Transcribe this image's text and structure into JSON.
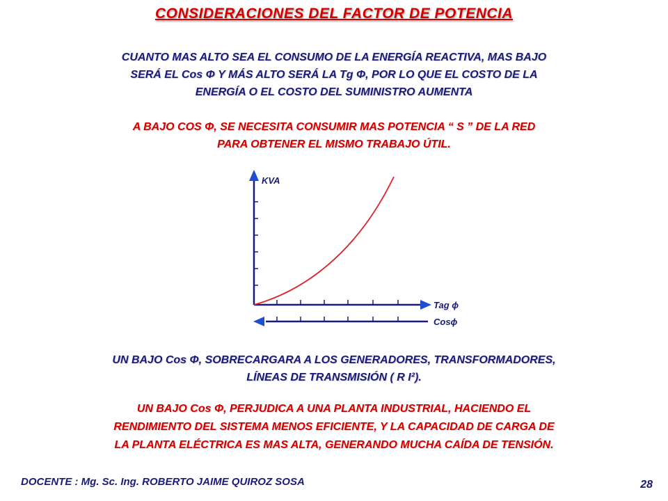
{
  "slide": {
    "title": "CONSIDERACIONES DEL FACTOR DE POTENCIA",
    "paragraph_1": [
      "CUANTO   MAS  ALTO  SEA EL CONSUMO DE LA ENERGÍA REACTIVA, MAS BAJO",
      "SERÁ EL Cos Φ  Y MÁS  ALTO  SERÁ  LA   Tg Φ,  POR LO QUE EL  COSTO  DE  LA",
      "ENERGÍA  O  EL  COSTO  DEL SUMINISTRO  AUMENTA"
    ],
    "paragraph_2": [
      "A BAJO COS Φ, SE NECESITA CONSUMIR MAS POTENCIA  “ S ”  DE LA RED",
      "PARA OBTENER EL  MISMO TRABAJO ÚTIL."
    ],
    "paragraph_3": [
      "UN  BAJO  Cos Φ,  SOBRECARGARA  A  LOS GENERADORES, TRANSFORMADORES,",
      "LÍNEAS DE     TRANSMISIÓN  ( R I²)."
    ],
    "paragraph_4": [
      "UN BAJO  Cos Φ,  PERJUDICA  A UNA PLANTA INDUSTRIAL,  HACIENDO  EL",
      "RENDIMIENTO DEL    SISTEMA  MENOS EFICIENTE,  Y LA CAPACIDAD DE  CARGA  DE",
      "LA  PLANTA  ELÉCTRICA  ES MAS   ALTA,   GENERANDO MUCHA CAÍDA DE TENSIÓN."
    ],
    "footer": "DOCENTE : Mg. Sc. Ing. ROBERTO JAIME QUIROZ SOSA",
    "page_number": "28"
  },
  "graph": {
    "y_label": "KVA",
    "x_label_top": "Tag ϕ",
    "x_label_bottom": "Cosϕ",
    "curve_color": "#e0202a",
    "axis_color": "#1a1a7a",
    "arrow_color": "#1f4fd1"
  }
}
